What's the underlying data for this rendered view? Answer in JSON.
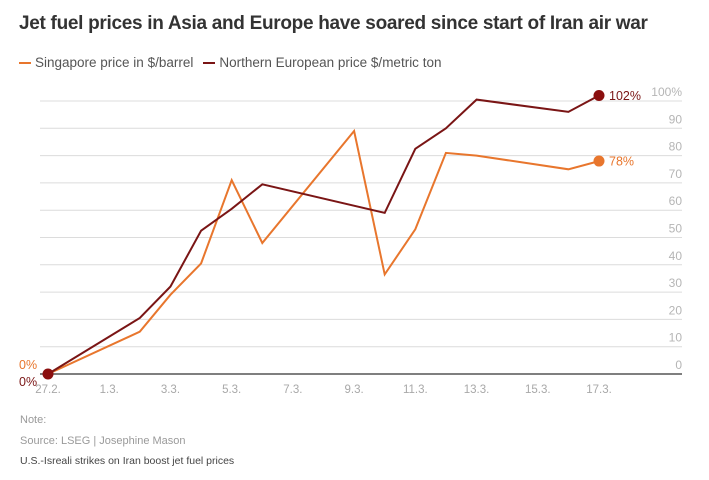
{
  "chart_data": {
    "type": "line",
    "title": "Jet fuel prices in Asia and Europe have soared since start of Iran air war",
    "xlabel": "",
    "ylabel": "",
    "x_tick_labels": [
      "27.2.",
      "1.3.",
      "3.3.",
      "5.3.",
      "7.3.",
      "9.3.",
      "11.3.",
      "13.3.",
      "15.3.",
      "17.3."
    ],
    "x_tick_days": [
      0,
      2,
      4,
      6,
      8,
      10,
      12,
      14,
      16,
      18
    ],
    "x_unit": "days since 27.2.",
    "xlim": [
      0,
      18
    ],
    "ylim": [
      0,
      100
    ],
    "y_ticks": [
      0,
      10,
      20,
      30,
      40,
      50,
      60,
      70,
      80,
      90,
      100
    ],
    "y_tick_labels": [
      "0",
      "10",
      "20",
      "30",
      "40",
      "50",
      "60",
      "70",
      "80",
      "90",
      "100%"
    ],
    "grid": true,
    "legend_position": "top-left",
    "series": [
      {
        "name": "Singapore price in $/barrel",
        "color": "#e8762d",
        "x": [
          0,
          3,
          4,
          5,
          6,
          7,
          10,
          11,
          12,
          13,
          14,
          17,
          18
        ],
        "values": [
          0,
          15.5,
          29,
          40.5,
          71,
          48,
          89,
          36.5,
          53,
          81,
          80,
          75,
          78
        ],
        "start_label": "0%",
        "end_label": "78%"
      },
      {
        "name": "Northern European price $/metric ton",
        "color": "#7a1515",
        "marker_color": "#8b0f0f",
        "x": [
          0,
          3,
          4,
          5,
          6,
          7,
          11,
          12,
          13,
          14,
          17,
          18
        ],
        "values": [
          0,
          20.5,
          32,
          52.5,
          60.5,
          69.5,
          59,
          82.5,
          90,
          100.5,
          96,
          102
        ],
        "start_label": "0%",
        "end_label": "102%"
      }
    ]
  },
  "footer": {
    "note": "Note:",
    "source": "Source: LSEG | Josephine Mason",
    "caption": "U.S.-Isreali strikes on Iran boost jet fuel prices"
  }
}
